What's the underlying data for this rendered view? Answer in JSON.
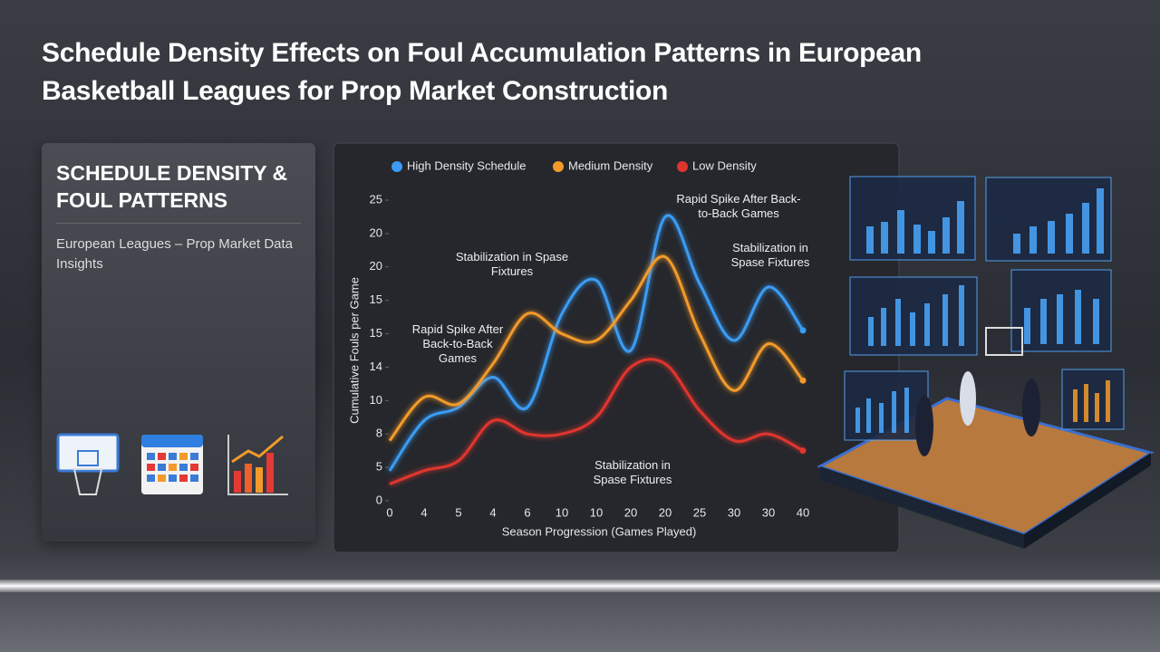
{
  "header": {
    "title": "Schedule Density Effects on Foul Accumulation Patterns in European Basketball Leagues for Prop Market Construction"
  },
  "panel": {
    "heading": "SCHEDULE DENSITY & FOUL PATTERNS",
    "subtitle": "European Leagues – Prop Market Data Insights"
  },
  "chart_data": {
    "type": "line",
    "x_label": "Season Progression (Games Played)",
    "y_label": "Cumulative Fouls per Game",
    "categories": [
      "0",
      "4",
      "5",
      "4",
      "6",
      "10",
      "10",
      "20",
      "20",
      "25",
      "30",
      "30",
      "40"
    ],
    "ylim": [
      0,
      9
    ],
    "yticks": [
      {
        "value": 0,
        "label": "0"
      },
      {
        "value": 1,
        "label": "5"
      },
      {
        "value": 2,
        "label": "8"
      },
      {
        "value": 3,
        "label": "10"
      },
      {
        "value": 4,
        "label": "14"
      },
      {
        "value": 5,
        "label": "15"
      },
      {
        "value": 6,
        "label": "15"
      },
      {
        "value": 7,
        "label": "20"
      },
      {
        "value": 8,
        "label": "20"
      },
      {
        "value": 9,
        "label": "25"
      }
    ],
    "grid": false,
    "series": [
      {
        "name": "High Density Schedule",
        "color": "#3a9cf5",
        "values": [
          0.9,
          2.4,
          2.8,
          3.7,
          2.8,
          5.6,
          6.6,
          4.5,
          8.5,
          6.5,
          4.8,
          6.4,
          5.1
        ]
      },
      {
        "name": "Medium Density",
        "color": "#f39a2b",
        "values": [
          1.8,
          3.1,
          2.9,
          4.1,
          5.6,
          5.0,
          4.8,
          6.0,
          7.3,
          5.0,
          3.3,
          4.7,
          3.6
        ]
      },
      {
        "name": "Low Density",
        "color": "#e0352f",
        "values": [
          0.5,
          0.9,
          1.2,
          2.4,
          2.0,
          2.0,
          2.5,
          4.0,
          4.1,
          2.7,
          1.8,
          2.0,
          1.5
        ]
      }
    ],
    "annotations": [
      "Rapid Spike After Back-to-Back Games",
      "Stabilization in Spase Fixtures",
      "Rapid Spike After Back-to-Back Games",
      "Stabilization in Spase Fixtures",
      "Stabilization in Spase Fixtures"
    ]
  }
}
